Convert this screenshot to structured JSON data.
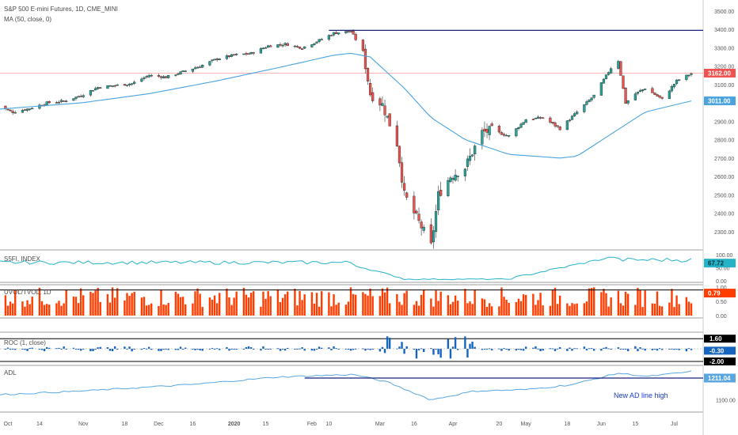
{
  "header": {
    "symbol_line": "S&P 500 E-mini Futures, 1D, CME_MINI",
    "ma_line": "MA (50, close, 0)"
  },
  "colors": {
    "up": "#26a69a",
    "down": "#ef5350",
    "ma": "#4aa3df",
    "resistance": "#1a237e",
    "price_line": "#ef5350",
    "sdol": "#26b3c8",
    "uvol": "#ff3d00",
    "roc": "#1565c0",
    "adl": "#5aa6e0",
    "annotation": "#1a3cc8"
  },
  "x_axis": {
    "labels": [
      "Oct",
      "14",
      "Nov",
      "18",
      "Dec",
      "16",
      "2020",
      "15",
      "Feb",
      "10",
      "Mar",
      "16",
      "Apr",
      "20",
      "May",
      "18",
      "Jun",
      "15",
      "Jul"
    ]
  },
  "panes": {
    "price": {
      "ticks": [
        "3500.00",
        "3400.00",
        "3300.00",
        "3200.00",
        "3100.00",
        "3000.00",
        "2900.00",
        "2800.00",
        "2700.00",
        "2600.00",
        "2500.00",
        "2400.00",
        "2300.00"
      ],
      "last": "3162.00",
      "ma_last": "3011.00"
    },
    "sdol": {
      "label": "S5FI, INDEX",
      "ticks": [
        "100.00",
        "50.00",
        "0.00"
      ],
      "last": "67.72"
    },
    "uvol": {
      "label": "UVOL/TVOL, 1D",
      "ticks": [
        "1.00",
        "0.50",
        "0.00"
      ],
      "last": "0.79"
    },
    "roc": {
      "label": "ROC (1, close)",
      "ticks": [
        "1.60",
        "-0.30",
        "-2.00"
      ],
      "last": "-0.30"
    },
    "adl": {
      "label": "ADL",
      "ticks": [
        "1100.00"
      ],
      "last": "1211.04",
      "annotation": "New AD line high"
    }
  },
  "chart_data": {
    "type": "line",
    "title": "S&P 500 E-mini Futures, 1D, CME_MINI",
    "x_range": [
      "2019-10-01",
      "2020-07-08"
    ],
    "price_ylim": [
      2200,
      3560
    ],
    "resistance_level": 3395,
    "last_price": 3162,
    "ma_period": 50,
    "close_path": {
      "dates": [
        "2019-09-26",
        "2019-10-03",
        "2019-10-10",
        "2019-10-17",
        "2019-10-24",
        "2019-10-31",
        "2019-11-07",
        "2019-11-14",
        "2019-11-21",
        "2019-11-28",
        "2019-12-05",
        "2019-12-12",
        "2019-12-19",
        "2019-12-26",
        "2020-01-02",
        "2020-01-09",
        "2020-01-16",
        "2020-01-23",
        "2020-01-30",
        "2020-02-06",
        "2020-02-12",
        "2020-02-19",
        "2020-02-24",
        "2020-02-27",
        "2020-03-03",
        "2020-03-09",
        "2020-03-12",
        "2020-03-16",
        "2020-03-20",
        "2020-03-23",
        "2020-03-26",
        "2020-03-31",
        "2020-04-06",
        "2020-04-13",
        "2020-04-17",
        "2020-04-24",
        "2020-05-01",
        "2020-05-08",
        "2020-05-15",
        "2020-05-22",
        "2020-05-29",
        "2020-06-05",
        "2020-06-08",
        "2020-06-11",
        "2020-06-15",
        "2020-06-19",
        "2020-06-26",
        "2020-07-02",
        "2020-07-08"
      ],
      "values": [
        2990,
        2950,
        2970,
        3000,
        3010,
        3040,
        3085,
        3095,
        3105,
        3150,
        3140,
        3170,
        3200,
        3240,
        3260,
        3270,
        3310,
        3320,
        3300,
        3340,
        3380,
        3390,
        3280,
        3050,
        2990,
        2780,
        2500,
        2400,
        2300,
        2220,
        2500,
        2600,
        2650,
        2840,
        2850,
        2820,
        2910,
        2920,
        2860,
        2950,
        3040,
        3190,
        3230,
        3000,
        3050,
        3080,
        3020,
        3120,
        3160
      ]
    },
    "ma_path": {
      "dates": [
        "2019-09-26",
        "2019-10-31",
        "2019-11-28",
        "2019-12-26",
        "2020-01-23",
        "2020-02-12",
        "2020-02-19",
        "2020-02-27",
        "2020-03-12",
        "2020-03-23",
        "2020-04-06",
        "2020-04-24",
        "2020-05-15",
        "2020-05-22",
        "2020-06-05",
        "2020-06-19",
        "2020-07-08"
      ],
      "values": [
        2965,
        3000,
        3050,
        3120,
        3200,
        3260,
        3270,
        3250,
        3080,
        2920,
        2800,
        2720,
        2700,
        2710,
        2830,
        2950,
        3011
      ]
    },
    "adl_new_high_from": "2020-01-31"
  }
}
